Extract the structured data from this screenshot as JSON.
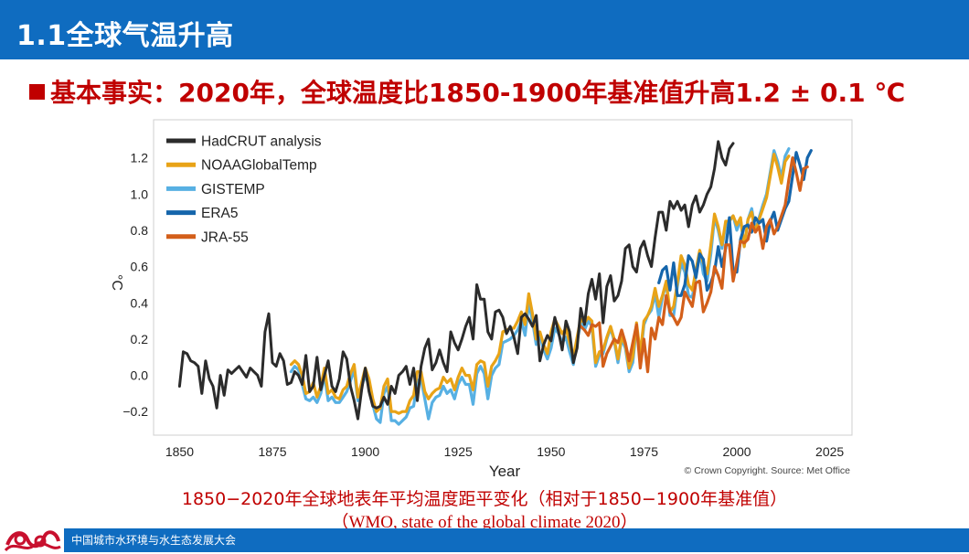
{
  "header": {
    "title": "1.1全球气温升高"
  },
  "fact": {
    "text": "基本事实：2020年，全球温度比1850-1900年基准值升高1.2 ± 0.1 ℃"
  },
  "captions": {
    "line1": "1850−2020年全球地表年平均温度距平变化（相对于1850−1900年基准值）",
    "line2": "（WMO, state of the global climate 2020）"
  },
  "footer": {
    "text": "中国城市水环境与水生态发展大会"
  },
  "chart_data": {
    "type": "line",
    "xlabel": "Year",
    "ylabel": "°C",
    "xlim": [
      1843,
      2031
    ],
    "ylim": [
      -0.33,
      1.41
    ],
    "xticks": [
      1850,
      1875,
      1900,
      1925,
      1950,
      1975,
      2000,
      2025
    ],
    "yticks": [
      -0.2,
      0.0,
      0.2,
      0.4,
      0.6,
      0.8,
      1.0,
      1.2
    ],
    "xtick_labels": [
      "1850",
      "1875",
      "1900",
      "1925",
      "1950",
      "1975",
      "2000",
      "2025"
    ],
    "ytick_labels": [
      "−0.2",
      "0.0",
      "0.2",
      "0.4",
      "0.6",
      "0.8",
      "1.0",
      "1.2"
    ],
    "legend_position": "top-left",
    "grid": false,
    "source": "© Crown Copyright. Source: Met Office",
    "series": [
      {
        "name": "HadCRUT analysis",
        "color": "#2b2b2b",
        "start": 1850,
        "values": [
          -0.06,
          0.13,
          0.12,
          0.08,
          0.07,
          0.05,
          -0.1,
          0.08,
          -0.02,
          -0.06,
          -0.18,
          0.0,
          -0.11,
          0.03,
          0.01,
          0.03,
          0.05,
          0.02,
          -0.01,
          0.04,
          0.02,
          0.0,
          -0.06,
          0.24,
          0.34,
          0.07,
          0.05,
          0.12,
          0.08,
          -0.05,
          -0.04,
          0.02,
          0.0,
          -0.05,
          0.11,
          -0.09,
          -0.06,
          0.1,
          -0.08,
          0.0,
          0.08,
          -0.06,
          -0.09,
          -0.02,
          0.13,
          0.09,
          -0.06,
          -0.14,
          -0.24,
          -0.08,
          0.04,
          -0.09,
          -0.17,
          -0.18,
          -0.17,
          -0.12,
          -0.16,
          -0.06,
          -0.1,
          0.0,
          0.02,
          0.05,
          -0.05,
          0.04,
          -0.14,
          0.05,
          0.15,
          0.2,
          0.03,
          0.07,
          0.14,
          0.07,
          0.02,
          0.24,
          0.18,
          0.14,
          0.2,
          0.27,
          0.32,
          0.2,
          0.5,
          0.42,
          0.42,
          0.24,
          0.2,
          0.35,
          0.36,
          0.32,
          0.23,
          0.27,
          0.21,
          0.12,
          0.32,
          0.34,
          0.31,
          0.27,
          0.33,
          0.08,
          0.17,
          0.22,
          0.19,
          0.32,
          0.24,
          0.14,
          0.3,
          0.24,
          0.07,
          0.15,
          0.37,
          0.28,
          0.45,
          0.53,
          0.42,
          0.56,
          0.29,
          0.49,
          0.55,
          0.41,
          0.44,
          0.52,
          0.7,
          0.72,
          0.6,
          0.57,
          0.7,
          0.74,
          0.66,
          0.6,
          0.76,
          0.9,
          0.9,
          0.8,
          0.96,
          0.92,
          0.96,
          0.91,
          0.94,
          0.82,
          0.94,
          0.99,
          0.9,
          0.94,
          1.0,
          1.04,
          1.14,
          1.29,
          1.2,
          1.16,
          1.25,
          1.28
        ]
      },
      {
        "name": "NOAAGlobalTemp",
        "color": "#e8a317",
        "start": 1880,
        "values": [
          0.06,
          0.08,
          0.06,
          0.0,
          -0.1,
          -0.09,
          -0.04,
          -0.12,
          -0.06,
          0.04,
          -0.1,
          -0.08,
          -0.12,
          -0.13,
          -0.08,
          -0.06,
          0.01,
          0.06,
          -0.12,
          -0.04,
          0.04,
          -0.02,
          -0.13,
          -0.2,
          -0.18,
          -0.06,
          -0.02,
          -0.2,
          -0.2,
          -0.21,
          -0.2,
          -0.2,
          -0.14,
          -0.11,
          0.02,
          0.02,
          -0.09,
          -0.13,
          -0.1,
          -0.08,
          -0.07,
          -0.01,
          -0.04,
          -0.02,
          -0.08,
          -0.01,
          0.04,
          0.0,
          0.0,
          -0.08,
          0.06,
          0.08,
          0.07,
          -0.06,
          0.05,
          0.08,
          0.12,
          0.24,
          0.25,
          0.26,
          0.26,
          0.3,
          0.35,
          0.28,
          0.45,
          0.34,
          0.2,
          0.24,
          0.17,
          0.12,
          0.24,
          0.31,
          0.27,
          0.23,
          0.26,
          0.18,
          0.1,
          0.21,
          0.31,
          0.29,
          0.32,
          0.3,
          0.07,
          0.13,
          0.14,
          0.21,
          0.27,
          0.2,
          0.09,
          0.21,
          0.17,
          0.04,
          0.1,
          0.29,
          0.12,
          0.3,
          0.33,
          0.38,
          0.48,
          0.38,
          0.44,
          0.52,
          0.35,
          0.38,
          0.51,
          0.66,
          0.61,
          0.5,
          0.47,
          0.58,
          0.69,
          0.62,
          0.56,
          0.72,
          0.89,
          0.82,
          0.72,
          0.85,
          0.85,
          0.88,
          0.83,
          0.87,
          0.71,
          0.86,
          0.9,
          0.79,
          0.86,
          0.92,
          0.98,
          1.1,
          1.22,
          1.15,
          1.06,
          1.18,
          1.21
        ]
      },
      {
        "name": "GISTEMP",
        "color": "#57b0e3",
        "start": 1880,
        "values": [
          0.02,
          0.05,
          0.03,
          -0.05,
          -0.13,
          -0.14,
          -0.12,
          -0.15,
          -0.1,
          0.0,
          -0.14,
          -0.12,
          -0.15,
          -0.15,
          -0.12,
          -0.09,
          -0.03,
          0.03,
          -0.14,
          -0.06,
          0.0,
          -0.06,
          -0.16,
          -0.24,
          -0.26,
          -0.1,
          -0.06,
          -0.25,
          -0.25,
          -0.27,
          -0.25,
          -0.23,
          -0.18,
          -0.17,
          -0.03,
          -0.02,
          -0.13,
          -0.24,
          -0.15,
          -0.12,
          -0.11,
          -0.06,
          -0.1,
          -0.08,
          -0.13,
          -0.05,
          -0.01,
          -0.05,
          -0.05,
          -0.16,
          0.01,
          0.05,
          0.01,
          -0.13,
          0.0,
          0.04,
          0.06,
          0.18,
          0.19,
          0.2,
          0.22,
          0.25,
          0.3,
          0.22,
          0.4,
          0.3,
          0.17,
          0.22,
          0.14,
          0.09,
          0.15,
          0.26,
          0.23,
          0.18,
          0.21,
          0.13,
          0.06,
          0.19,
          0.29,
          0.25,
          0.3,
          0.27,
          0.05,
          0.11,
          0.12,
          0.2,
          0.26,
          0.19,
          0.07,
          0.2,
          0.15,
          0.02,
          0.07,
          0.27,
          0.09,
          0.28,
          0.33,
          0.36,
          0.45,
          0.32,
          0.43,
          0.51,
          0.33,
          0.33,
          0.49,
          0.62,
          0.57,
          0.44,
          0.43,
          0.55,
          0.68,
          0.56,
          0.52,
          0.67,
          0.87,
          0.8,
          0.7,
          0.83,
          0.86,
          0.88,
          0.8,
          0.86,
          0.71,
          0.86,
          0.92,
          0.8,
          0.87,
          0.94,
          1.0,
          1.12,
          1.24,
          1.18,
          1.09,
          1.21,
          1.25
        ]
      },
      {
        "name": "ERA5",
        "color": "#1565ab",
        "start": 1979,
        "values": [
          0.51,
          0.58,
          0.6,
          0.47,
          0.62,
          0.44,
          0.44,
          0.5,
          0.66,
          0.63,
          0.54,
          0.67,
          0.64,
          0.47,
          0.51,
          0.57,
          0.71,
          0.6,
          0.7,
          0.87,
          0.57,
          0.57,
          0.75,
          0.82,
          0.83,
          0.79,
          0.87,
          0.84,
          0.86,
          0.74,
          0.85,
          0.9,
          0.8,
          0.86,
          0.92,
          0.96,
          1.1,
          1.23,
          1.16,
          1.08,
          1.2,
          1.24
        ]
      },
      {
        "name": "JRA-55",
        "color": "#d35f1a",
        "start": 1958,
        "values": [
          0.27,
          0.25,
          0.22,
          0.28,
          0.27,
          0.29,
          0.05,
          0.12,
          0.16,
          0.2,
          0.18,
          0.25,
          0.18,
          0.08,
          0.18,
          0.28,
          0.04,
          0.2,
          0.02,
          0.26,
          0.2,
          0.32,
          0.28,
          0.44,
          0.35,
          0.32,
          0.28,
          0.32,
          0.46,
          0.42,
          0.38,
          0.51,
          0.52,
          0.35,
          0.4,
          0.46,
          0.6,
          0.55,
          0.48,
          0.72,
          0.72,
          0.52,
          0.62,
          0.74,
          0.73,
          0.75,
          0.84,
          0.79,
          0.82,
          0.7,
          0.82,
          0.86,
          0.78,
          0.82,
          0.88,
          0.94,
          1.08,
          1.2,
          1.12,
          1.02,
          1.14,
          1.15
        ]
      }
    ]
  }
}
